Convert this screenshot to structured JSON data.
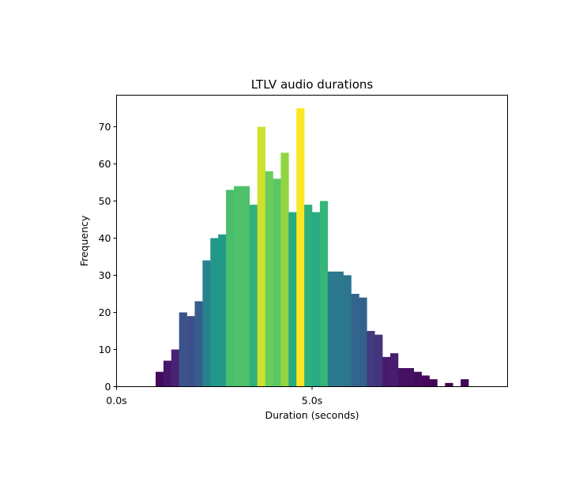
{
  "chart_data": {
    "type": "bar",
    "title": "LTLV audio durations",
    "xlabel": "Duration (seconds)",
    "ylabel": "Frequency",
    "xlim": [
      0,
      10
    ],
    "ylim": [
      0,
      78.5
    ],
    "x_ticks": [
      {
        "value": 0,
        "label": "0.0s"
      },
      {
        "value": 5,
        "label": "5.0s"
      }
    ],
    "y_ticks": [
      0,
      10,
      20,
      30,
      40,
      50,
      60,
      70
    ],
    "grid": false,
    "legend": "none",
    "bin_width": 0.2,
    "bins": [
      {
        "x": 1.0,
        "count": 4
      },
      {
        "x": 1.2,
        "count": 7
      },
      {
        "x": 1.4,
        "count": 10
      },
      {
        "x": 1.6,
        "count": 20
      },
      {
        "x": 1.8,
        "count": 19
      },
      {
        "x": 2.0,
        "count": 23
      },
      {
        "x": 2.2,
        "count": 34
      },
      {
        "x": 2.4,
        "count": 40
      },
      {
        "x": 2.6,
        "count": 41
      },
      {
        "x": 2.8,
        "count": 53
      },
      {
        "x": 3.0,
        "count": 54
      },
      {
        "x": 3.2,
        "count": 54
      },
      {
        "x": 3.4,
        "count": 49
      },
      {
        "x": 3.6,
        "count": 70
      },
      {
        "x": 3.8,
        "count": 58
      },
      {
        "x": 4.0,
        "count": 56
      },
      {
        "x": 4.2,
        "count": 63
      },
      {
        "x": 4.4,
        "count": 47
      },
      {
        "x": 4.6,
        "count": 75
      },
      {
        "x": 4.8,
        "count": 49
      },
      {
        "x": 5.0,
        "count": 47
      },
      {
        "x": 5.2,
        "count": 50
      },
      {
        "x": 5.4,
        "count": 31
      },
      {
        "x": 5.6,
        "count": 31
      },
      {
        "x": 5.8,
        "count": 30
      },
      {
        "x": 6.0,
        "count": 25
      },
      {
        "x": 6.2,
        "count": 24
      },
      {
        "x": 6.4,
        "count": 15
      },
      {
        "x": 6.6,
        "count": 14
      },
      {
        "x": 6.8,
        "count": 8
      },
      {
        "x": 7.0,
        "count": 9
      },
      {
        "x": 7.2,
        "count": 5
      },
      {
        "x": 7.4,
        "count": 5
      },
      {
        "x": 7.6,
        "count": 4
      },
      {
        "x": 7.8,
        "count": 3
      },
      {
        "x": 8.0,
        "count": 2
      },
      {
        "x": 8.4,
        "count": 1
      },
      {
        "x": 8.8,
        "count": 2
      }
    ],
    "colormap": "viridis, colored by bar height"
  }
}
